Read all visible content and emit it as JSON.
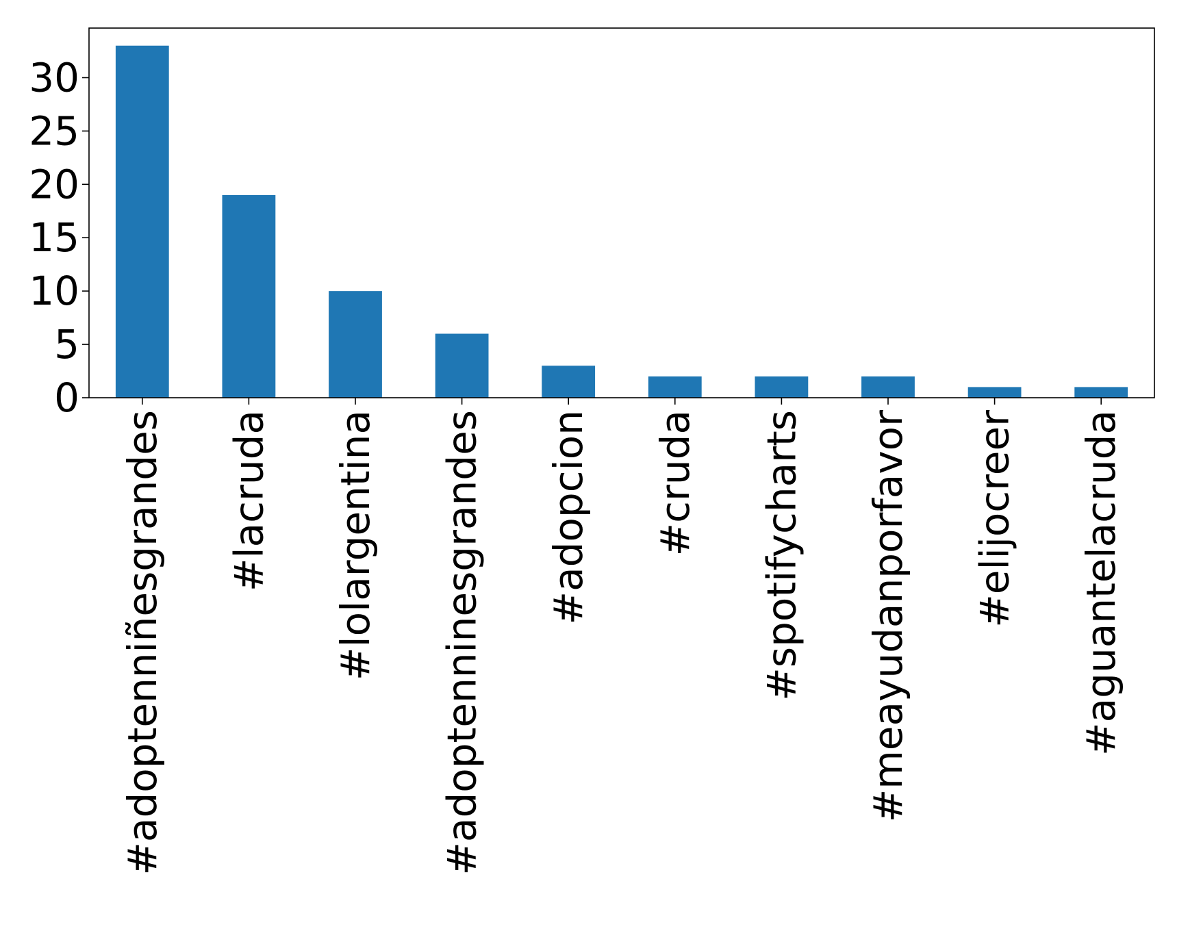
{
  "chart_data": {
    "type": "bar",
    "categories": [
      "#adoptenniñesgrandes",
      "#lacruda",
      "#lolargentina",
      "#adoptenninesgrandes",
      "#adopcion",
      "#cruda",
      "#spotifycharts",
      "#meayudanporfavor",
      "#elijocreer",
      "#aguantelacruda"
    ],
    "values": [
      33,
      19,
      10,
      6,
      3,
      2,
      2,
      2,
      1,
      1
    ],
    "title": "",
    "xlabel": "",
    "ylabel": "",
    "ylim": [
      0,
      34.65
    ],
    "yticks": [
      0,
      5,
      10,
      15,
      20,
      25,
      30
    ],
    "bar_color": "#1f77b4",
    "grid": false,
    "legend": "none"
  }
}
